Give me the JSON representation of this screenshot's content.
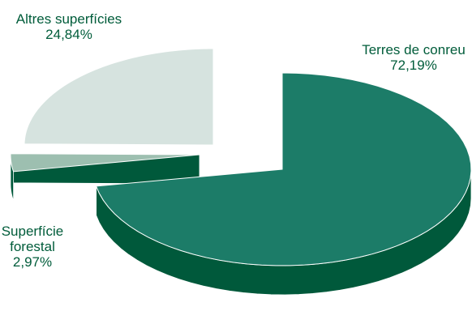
{
  "chart_data": {
    "type": "pie",
    "style": "3d-exploded",
    "title": "",
    "slices": [
      {
        "label": "Terres de conreu",
        "value": 72.19,
        "value_label": "72,19%",
        "color": "#1c7c68"
      },
      {
        "label": "Superfície forestal",
        "value": 2.97,
        "value_label": "2,97%",
        "color": "#9dbfb0"
      },
      {
        "label": "Altres superfícies",
        "value": 24.84,
        "value_label": "24,84%",
        "color": "#d6e3df"
      }
    ],
    "side_color": "#00593b"
  }
}
